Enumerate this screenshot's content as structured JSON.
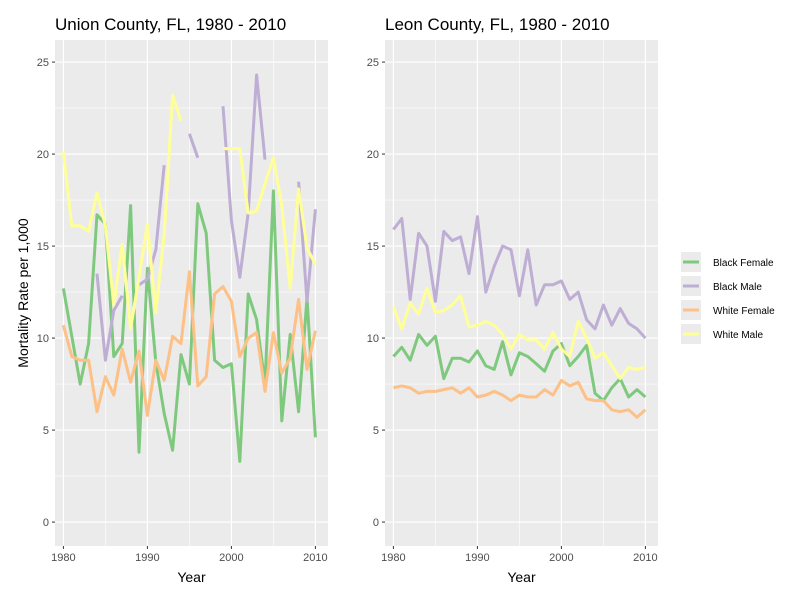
{
  "chart_data": [
    {
      "type": "line",
      "title": "Union County, FL, 1980 - 2010",
      "xlabel": "Year",
      "ylabel": "Mortality Rate per 1,000",
      "xlim": [
        1979,
        2011.5
      ],
      "ylim": [
        -1.3,
        26.2
      ],
      "xticks": [
        1980,
        1990,
        2000,
        2010
      ],
      "yticks": [
        0,
        5,
        10,
        15,
        20,
        25
      ],
      "grid": true,
      "series": [
        {
          "name": "Black Female",
          "x": [
            1980,
            1981,
            1982,
            1983,
            1984,
            1985,
            1986,
            1987,
            1988,
            1989,
            1990,
            1991,
            1992,
            1993,
            1994,
            1995,
            1996,
            1997,
            1998,
            1999,
            2000,
            2001,
            2002,
            2003,
            2004,
            2005,
            2006,
            2007,
            2008,
            2009,
            2010
          ],
          "y": [
            12.7,
            10.1,
            7.5,
            9.7,
            16.7,
            16.2,
            9.0,
            9.7,
            17.2,
            3.8,
            13.8,
            8.7,
            5.9,
            3.9,
            9.1,
            7.5,
            17.3,
            15.7,
            8.8,
            8.4,
            8.6,
            3.3,
            12.4,
            11.0,
            7.5,
            18.0,
            5.5,
            10.2,
            6.0,
            12.2,
            4.6
          ]
        },
        {
          "name": "Black Male",
          "x": [
            1980,
            1981,
            1982,
            1983,
            1984,
            1985,
            1986,
            1987,
            1988,
            1989,
            1990,
            1991,
            1992,
            1993,
            1994,
            1995,
            1996,
            1997,
            1998,
            1999,
            2000,
            2001,
            2002,
            2003,
            2004,
            2005,
            2006,
            2007,
            2008,
            2009,
            2010
          ],
          "y": [
            null,
            null,
            null,
            null,
            13.5,
            8.8,
            11.5,
            12.3,
            null,
            12.9,
            13.2,
            14.8,
            19.4,
            null,
            null,
            21.1,
            19.8,
            null,
            null,
            22.6,
            16.4,
            13.3,
            16.8,
            24.3,
            19.7,
            null,
            null,
            null,
            18.5,
            12.0,
            17.0
          ]
        },
        {
          "name": "White Female",
          "x": [
            1980,
            1981,
            1982,
            1983,
            1984,
            1985,
            1986,
            1987,
            1988,
            1989,
            1990,
            1991,
            1992,
            1993,
            1994,
            1995,
            1996,
            1997,
            1998,
            1999,
            2000,
            2001,
            2002,
            2003,
            2004,
            2005,
            2006,
            2007,
            2008,
            2009,
            2010
          ],
          "y": [
            10.7,
            9.0,
            8.8,
            8.8,
            6.0,
            7.9,
            6.9,
            9.4,
            7.6,
            9.3,
            5.8,
            8.8,
            7.7,
            10.1,
            9.7,
            13.6,
            7.4,
            7.9,
            12.4,
            12.8,
            12.0,
            9.0,
            10.0,
            10.3,
            7.1,
            10.3,
            8.1,
            8.9,
            12.1,
            8.3,
            10.4
          ]
        },
        {
          "name": "White Male",
          "x": [
            1980,
            1981,
            1982,
            1983,
            1984,
            1985,
            1986,
            1987,
            1988,
            1989,
            1990,
            1991,
            1992,
            1993,
            1994,
            1995,
            1996,
            1997,
            1998,
            1999,
            2000,
            2001,
            2002,
            2003,
            2004,
            2005,
            2006,
            2007,
            2008,
            2009,
            2010
          ],
          "y": [
            20.1,
            16.1,
            16.1,
            15.8,
            17.9,
            16.1,
            11.8,
            15.1,
            10.5,
            13.3,
            16.2,
            11.4,
            15.6,
            23.2,
            21.8,
            null,
            null,
            null,
            null,
            20.3,
            20.3,
            20.3,
            16.8,
            16.9,
            18.4,
            19.8,
            17.2,
            12.7,
            18.1,
            14.9,
            14.0
          ]
        }
      ]
    },
    {
      "type": "line",
      "title": "Leon County, FL, 1980 - 2010",
      "xlabel": "Year",
      "ylabel": "",
      "xlim": [
        1979,
        2011.5
      ],
      "ylim": [
        -1.3,
        26.2
      ],
      "xticks": [
        1980,
        1990,
        2000,
        2010
      ],
      "yticks": [
        0,
        5,
        10,
        15,
        20,
        25
      ],
      "grid": true,
      "series": [
        {
          "name": "Black Female",
          "x": [
            1980,
            1981,
            1982,
            1983,
            1984,
            1985,
            1986,
            1987,
            1988,
            1989,
            1990,
            1991,
            1992,
            1993,
            1994,
            1995,
            1996,
            1997,
            1998,
            1999,
            2000,
            2001,
            2002,
            2003,
            2004,
            2005,
            2006,
            2007,
            2008,
            2009,
            2010
          ],
          "y": [
            9.0,
            9.5,
            8.8,
            10.2,
            9.6,
            10.1,
            7.8,
            8.9,
            8.9,
            8.7,
            9.3,
            8.5,
            8.3,
            9.8,
            8.0,
            9.2,
            9.0,
            8.6,
            8.2,
            9.3,
            9.7,
            8.5,
            9.0,
            9.6,
            7.0,
            6.6,
            7.3,
            7.8,
            6.8,
            7.2,
            6.8
          ]
        },
        {
          "name": "Black Male",
          "x": [
            1980,
            1981,
            1982,
            1983,
            1984,
            1985,
            1986,
            1987,
            1988,
            1989,
            1990,
            1991,
            1992,
            1993,
            1994,
            1995,
            1996,
            1997,
            1998,
            1999,
            2000,
            2001,
            2002,
            2003,
            2004,
            2005,
            2006,
            2007,
            2008,
            2009,
            2010
          ],
          "y": [
            15.9,
            16.5,
            12.1,
            15.7,
            15.0,
            12.0,
            15.8,
            15.3,
            15.5,
            13.5,
            16.6,
            12.5,
            13.9,
            15.0,
            14.8,
            12.3,
            14.8,
            11.8,
            12.9,
            12.9,
            13.1,
            12.1,
            12.5,
            11.0,
            10.5,
            11.8,
            10.7,
            11.6,
            10.8,
            10.5,
            10.0
          ]
        },
        {
          "name": "White Female",
          "x": [
            1980,
            1981,
            1982,
            1983,
            1984,
            1985,
            1986,
            1987,
            1988,
            1989,
            1990,
            1991,
            1992,
            1993,
            1994,
            1995,
            1996,
            1997,
            1998,
            1999,
            2000,
            2001,
            2002,
            2003,
            2004,
            2005,
            2006,
            2007,
            2008,
            2009,
            2010
          ],
          "y": [
            7.3,
            7.4,
            7.3,
            7.0,
            7.1,
            7.1,
            7.2,
            7.3,
            7.0,
            7.3,
            6.8,
            6.9,
            7.1,
            6.9,
            6.6,
            6.9,
            6.8,
            6.8,
            7.2,
            6.9,
            7.7,
            7.4,
            7.6,
            6.7,
            6.6,
            6.6,
            6.1,
            6.0,
            6.1,
            5.7,
            6.1
          ]
        },
        {
          "name": "White Male",
          "x": [
            1980,
            1981,
            1982,
            1983,
            1984,
            1985,
            1986,
            1987,
            1988,
            1989,
            1990,
            1991,
            1992,
            1993,
            1994,
            1995,
            1996,
            1997,
            1998,
            1999,
            2000,
            2001,
            2002,
            2003,
            2004,
            2005,
            2006,
            2007,
            2008,
            2009,
            2010
          ],
          "y": [
            11.7,
            10.5,
            11.9,
            11.3,
            12.7,
            11.4,
            11.5,
            11.8,
            12.3,
            10.6,
            10.7,
            10.9,
            10.7,
            10.2,
            9.4,
            10.2,
            9.9,
            9.9,
            9.4,
            10.3,
            9.4,
            9.0,
            10.9,
            10.0,
            8.9,
            9.2,
            8.5,
            7.8,
            8.4,
            8.3,
            8.4
          ]
        }
      ]
    }
  ],
  "legend": {
    "placement": "right",
    "items": [
      {
        "label": "Black Female",
        "color": "#7fc97f"
      },
      {
        "label": "Black Male",
        "color": "#beaed4"
      },
      {
        "label": "White Female",
        "color": "#fdc086"
      },
      {
        "label": "White Male",
        "color": "#ffff99"
      }
    ]
  },
  "colors": {
    "panel_background": "#ebebeb",
    "gridline": "#ffffff"
  }
}
